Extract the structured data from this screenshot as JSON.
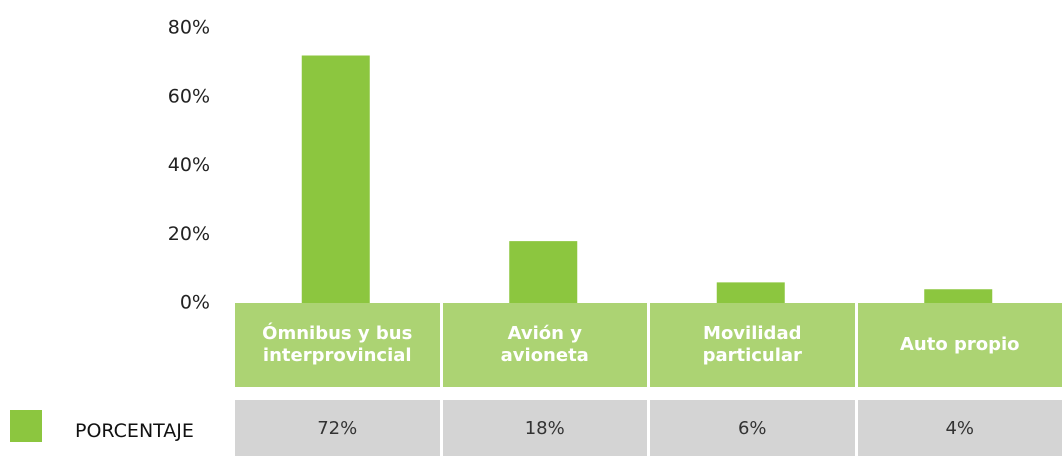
{
  "chart_data": {
    "type": "bar",
    "categories": [
      "Ómnibus y bus interprovincial",
      "Avión y avioneta",
      "Movilidad particular",
      "Auto propio"
    ],
    "series": [
      {
        "name": "PORCENTAJE",
        "color": "#8cc63f",
        "values": [
          72,
          18,
          6,
          4
        ],
        "value_labels": [
          "72%",
          "18%",
          "6%",
          "4%"
        ]
      }
    ],
    "ylim": [
      0,
      80
    ],
    "yticks": [
      {
        "value": 0,
        "label": "0%"
      },
      {
        "value": 20,
        "label": "20%"
      },
      {
        "value": 40,
        "label": "40%"
      },
      {
        "value": 60,
        "label": "60%"
      },
      {
        "value": 80,
        "label": "80%"
      }
    ]
  }
}
